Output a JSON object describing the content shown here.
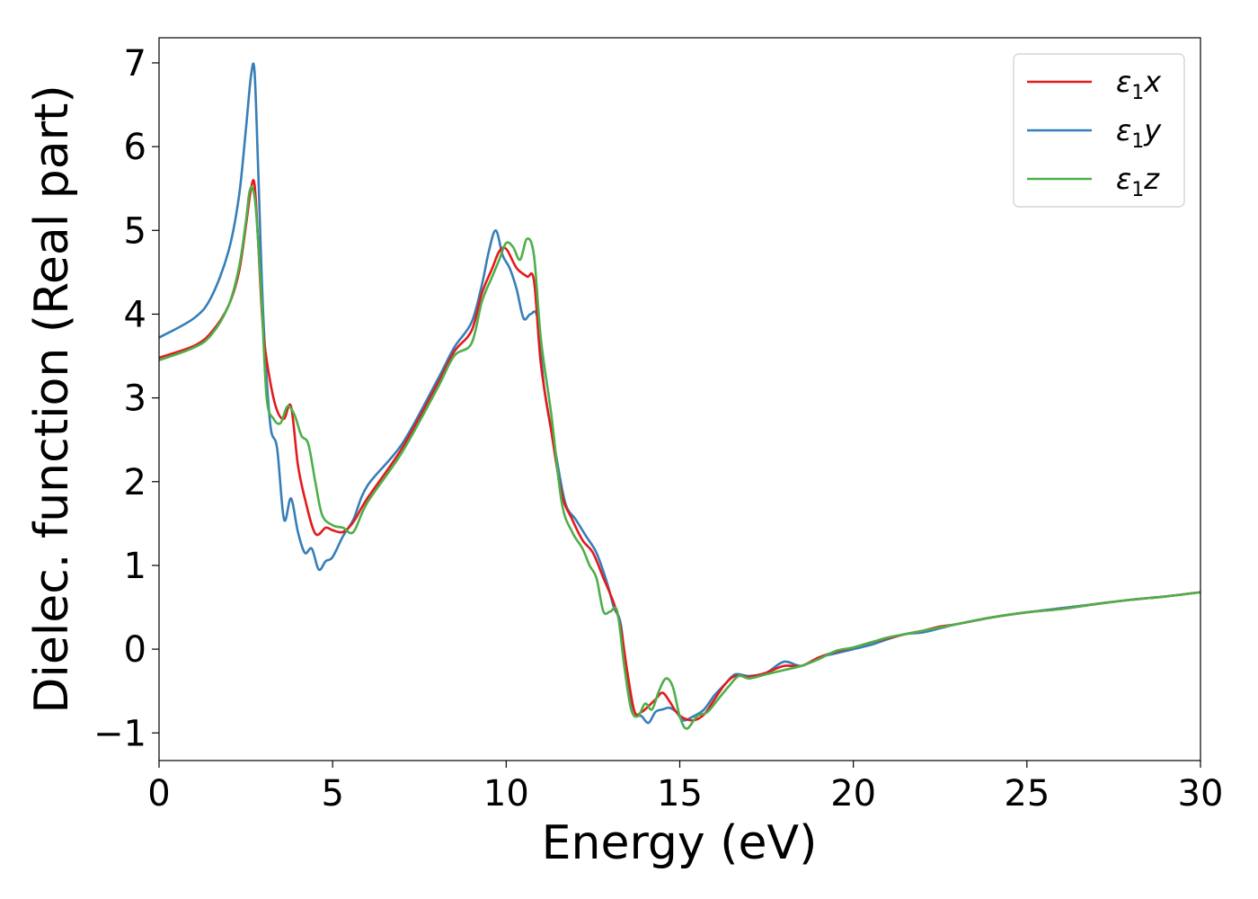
{
  "chart_data": {
    "type": "line",
    "title": "",
    "xlabel": "Energy (eV)",
    "ylabel": "Dielec. function (Real part)",
    "xlim": [
      0,
      30
    ],
    "ylim": [
      -1.33,
      7.3
    ],
    "xticks": [
      0,
      5,
      10,
      15,
      20,
      25,
      30
    ],
    "xtick_labels": [
      "0",
      "5",
      "10",
      "15",
      "20",
      "25",
      "30"
    ],
    "yticks": [
      -1,
      0,
      1,
      2,
      3,
      4,
      5,
      6,
      7
    ],
    "ytick_labels": [
      "−1",
      "0",
      "1",
      "2",
      "3",
      "4",
      "5",
      "6",
      "7"
    ],
    "grid": false,
    "legend_position": "top-right",
    "series": [
      {
        "name": "ε₁x",
        "name_main": "ε",
        "name_sub": "1",
        "name_var": "x",
        "color": "#e41a1c",
        "x": [
          0,
          1,
          1.5,
          2,
          2.3,
          2.5,
          2.65,
          2.75,
          2.85,
          3.0,
          3.2,
          3.4,
          3.6,
          3.8,
          4.0,
          4.2,
          4.5,
          4.8,
          5.0,
          5.3,
          5.6,
          6.0,
          7.0,
          8.0,
          8.5,
          9.0,
          9.3,
          9.6,
          9.8,
          10.0,
          10.3,
          10.6,
          10.8,
          11.0,
          11.3,
          11.6,
          11.9,
          12.2,
          12.5,
          12.8,
          13.1,
          13.3,
          13.5,
          13.7,
          13.9,
          14.1,
          14.3,
          14.5,
          14.7,
          14.9,
          15.1,
          15.4,
          15.7,
          16.0,
          16.3,
          16.6,
          17.0,
          17.5,
          18.0,
          18.5,
          19.0,
          19.5,
          20.0,
          20.5,
          21.0,
          21.5,
          22.0,
          22.5,
          23.0,
          24.0,
          25.0,
          26.0,
          27.0,
          28.0,
          29.0,
          30.0
        ],
        "y": [
          3.48,
          3.62,
          3.78,
          4.1,
          4.5,
          5.05,
          5.5,
          5.55,
          4.9,
          3.8,
          3.2,
          2.85,
          2.75,
          2.9,
          2.2,
          1.8,
          1.38,
          1.45,
          1.42,
          1.4,
          1.52,
          1.8,
          2.4,
          3.15,
          3.55,
          3.8,
          4.25,
          4.55,
          4.75,
          4.78,
          4.55,
          4.45,
          4.4,
          3.4,
          2.6,
          1.85,
          1.55,
          1.3,
          1.15,
          0.85,
          0.55,
          0.25,
          -0.3,
          -0.75,
          -0.75,
          -0.68,
          -0.6,
          -0.52,
          -0.62,
          -0.75,
          -0.82,
          -0.85,
          -0.78,
          -0.6,
          -0.42,
          -0.32,
          -0.33,
          -0.28,
          -0.2,
          -0.2,
          -0.1,
          -0.03,
          0.02,
          0.08,
          0.13,
          0.18,
          0.22,
          0.27,
          0.3,
          0.38,
          0.44,
          0.48,
          0.54,
          0.59,
          0.63,
          0.68
        ]
      },
      {
        "name": "ε₁y",
        "name_main": "ε",
        "name_sub": "1",
        "name_var": "y",
        "color": "#377eb8",
        "x": [
          0,
          1,
          1.5,
          2,
          2.3,
          2.5,
          2.65,
          2.75,
          2.85,
          3.0,
          3.2,
          3.4,
          3.6,
          3.8,
          4.0,
          4.2,
          4.4,
          4.6,
          4.8,
          5.0,
          5.3,
          5.6,
          6.0,
          7.0,
          8.0,
          8.5,
          9.0,
          9.3,
          9.5,
          9.7,
          9.9,
          10.1,
          10.3,
          10.5,
          10.7,
          10.9,
          11.1,
          11.4,
          11.7,
          12.0,
          12.3,
          12.6,
          12.9,
          13.1,
          13.3,
          13.5,
          13.7,
          13.9,
          14.1,
          14.3,
          14.5,
          14.7,
          14.9,
          15.1,
          15.4,
          15.7,
          16.0,
          16.3,
          16.6,
          17.0,
          17.5,
          18.0,
          18.5,
          19.0,
          19.5,
          20.0,
          20.5,
          21.0,
          21.5,
          22.0,
          22.5,
          23.0,
          24.0,
          25.0,
          26.0,
          27.0,
          28.0,
          29.0,
          30.0
        ],
        "y": [
          3.72,
          3.95,
          4.2,
          4.75,
          5.4,
          6.2,
          6.85,
          6.9,
          5.8,
          4.0,
          2.7,
          2.4,
          1.55,
          1.8,
          1.4,
          1.15,
          1.2,
          0.95,
          1.05,
          1.1,
          1.35,
          1.55,
          1.95,
          2.45,
          3.2,
          3.6,
          3.9,
          4.35,
          4.75,
          5.0,
          4.7,
          4.55,
          4.3,
          3.95,
          4.0,
          3.95,
          3.1,
          2.4,
          1.75,
          1.55,
          1.35,
          1.15,
          0.8,
          0.5,
          0.3,
          -0.4,
          -0.75,
          -0.8,
          -0.88,
          -0.75,
          -0.72,
          -0.7,
          -0.75,
          -0.85,
          -0.8,
          -0.72,
          -0.55,
          -0.42,
          -0.3,
          -0.32,
          -0.28,
          -0.15,
          -0.2,
          -0.1,
          -0.05,
          0.0,
          0.05,
          0.12,
          0.18,
          0.2,
          0.25,
          0.3,
          0.38,
          0.44,
          0.49,
          0.54,
          0.59,
          0.63,
          0.68
        ]
      },
      {
        "name": "ε₁z",
        "name_main": "ε",
        "name_sub": "1",
        "name_var": "z",
        "color": "#4daf4a",
        "x": [
          0,
          1,
          1.5,
          2,
          2.3,
          2.5,
          2.6,
          2.7,
          2.8,
          2.95,
          3.1,
          3.3,
          3.5,
          3.7,
          3.9,
          4.1,
          4.3,
          4.5,
          4.7,
          5.0,
          5.3,
          5.6,
          6.0,
          7.0,
          8.0,
          8.5,
          9.0,
          9.3,
          9.6,
          9.8,
          10.0,
          10.2,
          10.4,
          10.6,
          10.8,
          11.0,
          11.3,
          11.6,
          11.9,
          12.2,
          12.4,
          12.6,
          12.8,
          13.0,
          13.2,
          13.4,
          13.6,
          13.8,
          14.0,
          14.2,
          14.4,
          14.6,
          14.8,
          15.0,
          15.2,
          15.5,
          15.8,
          16.1,
          16.4,
          16.7,
          17.0,
          17.5,
          18.0,
          18.5,
          19.0,
          19.5,
          20.0,
          20.5,
          21.0,
          21.5,
          22.0,
          22.5,
          23.0,
          24.0,
          25.0,
          26.0,
          27.0,
          28.0,
          29.0,
          30.0
        ],
        "y": [
          3.45,
          3.6,
          3.75,
          4.1,
          4.55,
          5.1,
          5.45,
          5.5,
          5.2,
          4.2,
          3.0,
          2.75,
          2.7,
          2.9,
          2.8,
          2.55,
          2.45,
          2.0,
          1.6,
          1.48,
          1.45,
          1.4,
          1.75,
          2.35,
          3.1,
          3.5,
          3.65,
          4.15,
          4.45,
          4.65,
          4.85,
          4.8,
          4.65,
          4.9,
          4.7,
          3.7,
          2.8,
          1.75,
          1.4,
          1.2,
          1.0,
          0.85,
          0.45,
          0.45,
          0.45,
          -0.2,
          -0.72,
          -0.8,
          -0.65,
          -0.72,
          -0.5,
          -0.35,
          -0.45,
          -0.8,
          -0.95,
          -0.8,
          -0.75,
          -0.6,
          -0.45,
          -0.32,
          -0.35,
          -0.3,
          -0.25,
          -0.2,
          -0.12,
          -0.02,
          0.02,
          0.08,
          0.14,
          0.18,
          0.22,
          0.26,
          0.3,
          0.38,
          0.44,
          0.48,
          0.54,
          0.59,
          0.63,
          0.68
        ]
      }
    ]
  }
}
